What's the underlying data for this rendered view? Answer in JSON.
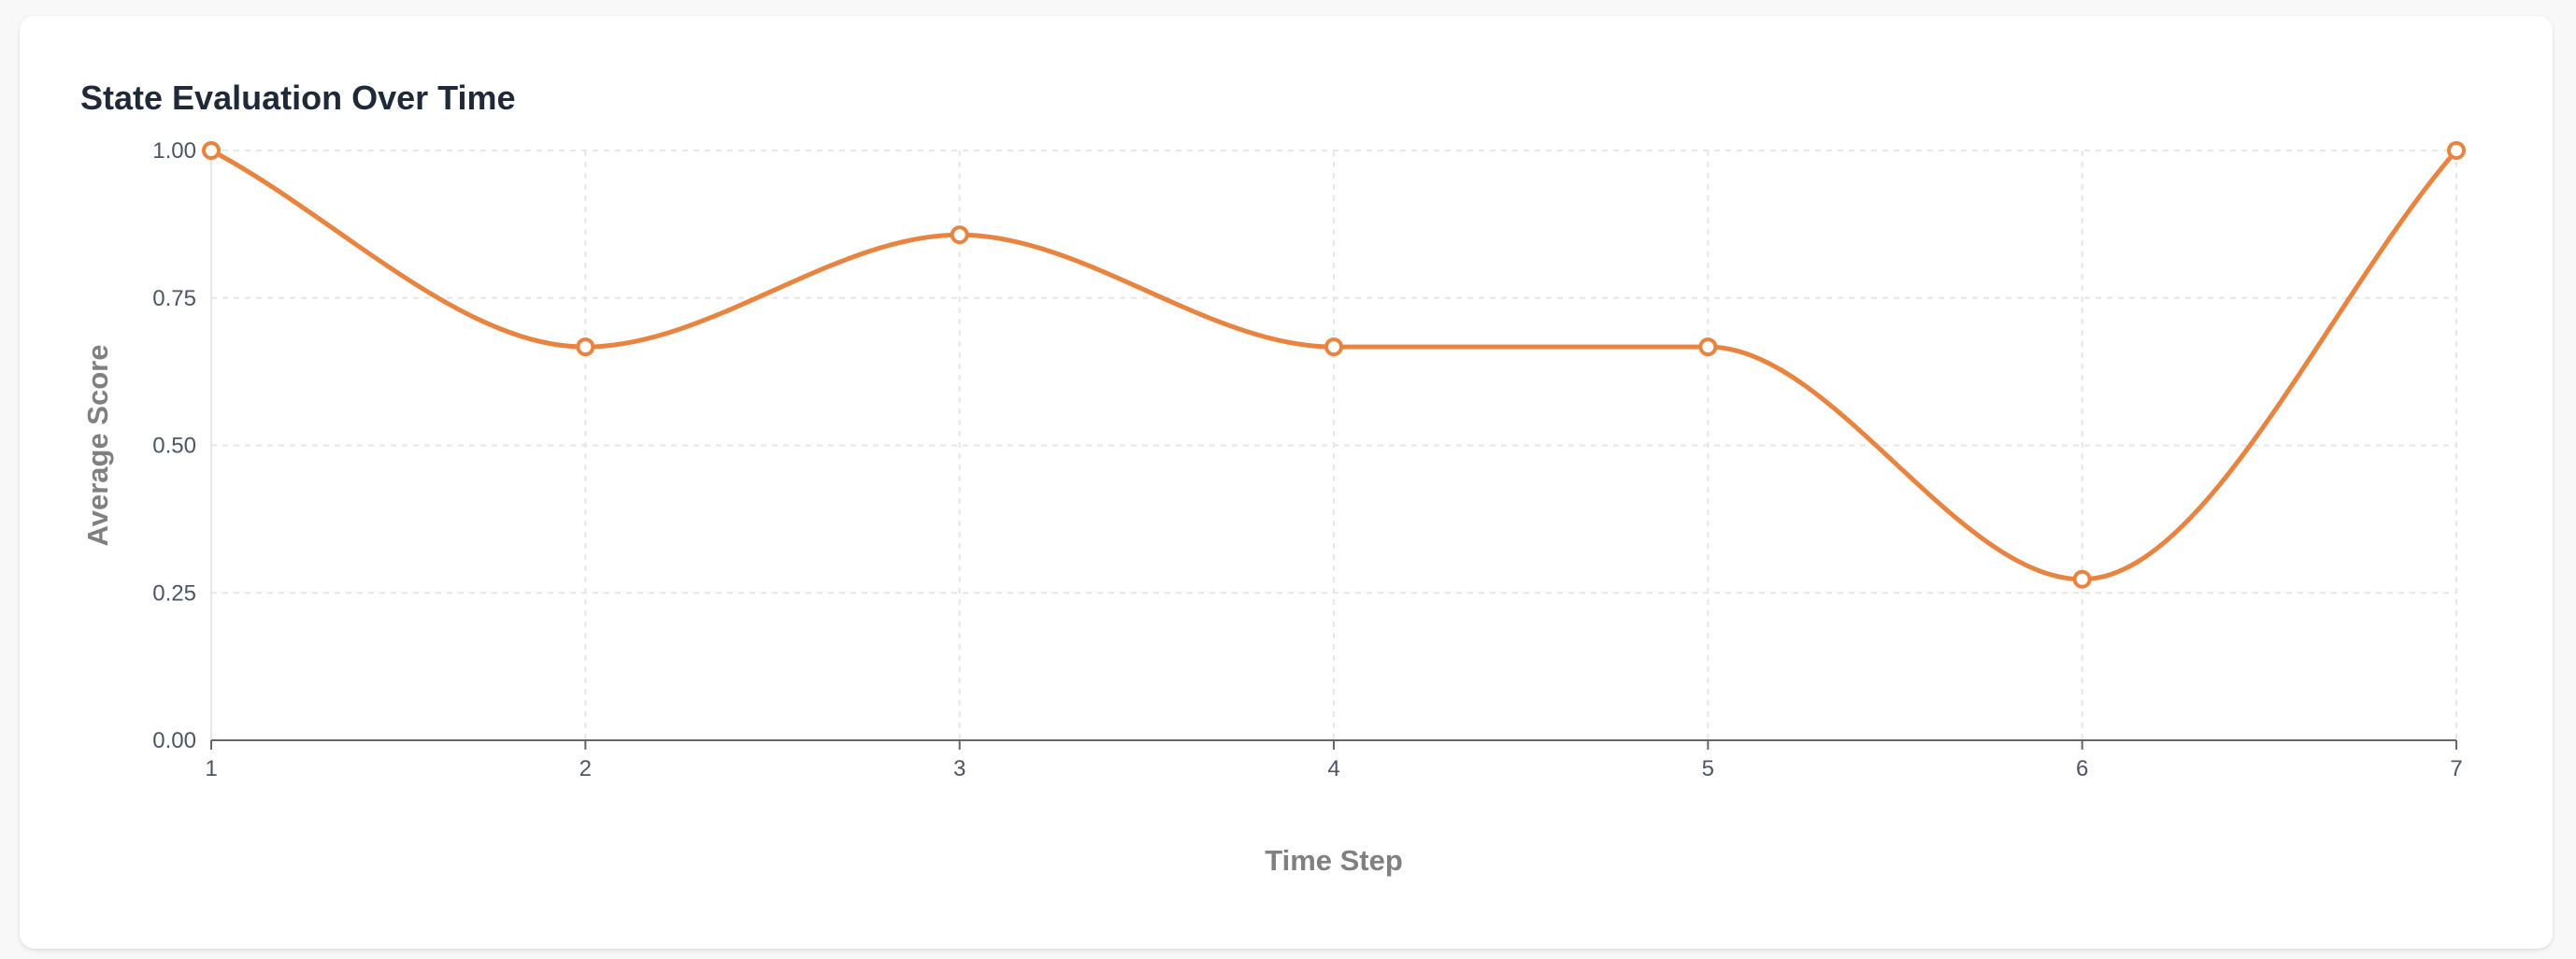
{
  "chart_data": {
    "type": "line",
    "title": "State Evaluation Over Time",
    "xlabel": "Time Step",
    "ylabel": "Average Score",
    "x": [
      1,
      2,
      3,
      4,
      5,
      6,
      7
    ],
    "series": [
      {
        "values": [
          1.0,
          0.667,
          0.857,
          0.667,
          0.667,
          0.273,
          1.0
        ]
      }
    ],
    "xlim": [
      1,
      7
    ],
    "ylim": [
      0,
      1
    ],
    "xticks": [
      "1",
      "2",
      "3",
      "4",
      "5",
      "6",
      "7"
    ],
    "yticks": [
      "0.00",
      "0.25",
      "0.50",
      "0.75",
      "1.00"
    ],
    "grid": true,
    "legend": "none",
    "curve": "monotone",
    "colors": {
      "line": "#e8843f",
      "grid": "#e6e6e6",
      "axis": "#666666"
    }
  }
}
